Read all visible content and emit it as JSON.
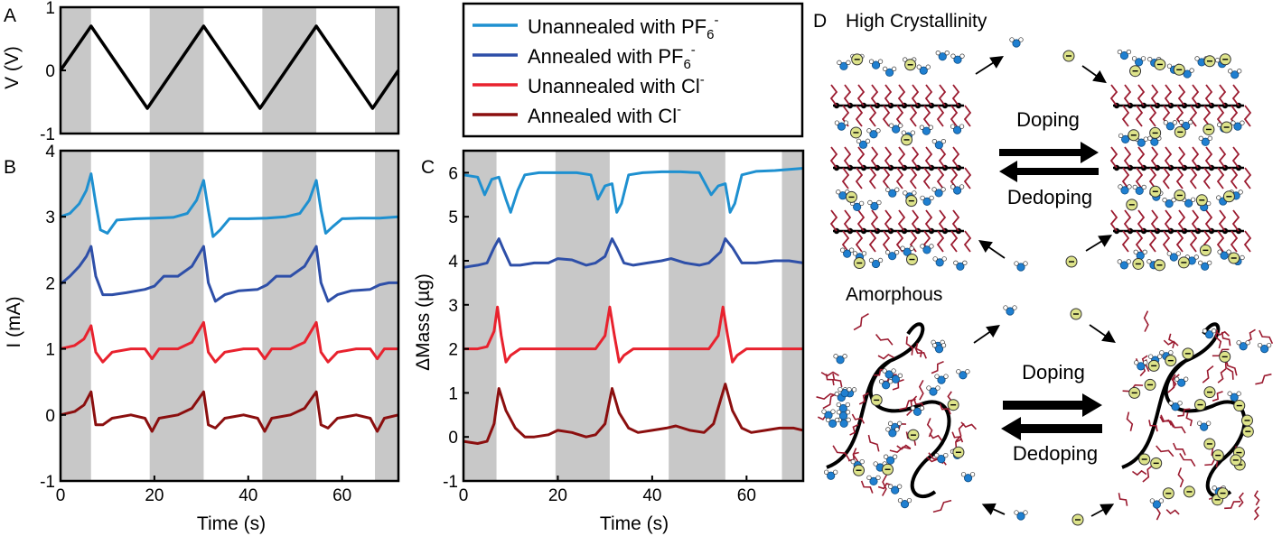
{
  "panel_labels": {
    "a": "A",
    "b": "B",
    "c": "C",
    "d": "D"
  },
  "panel_a": {
    "y_label": "V (V)",
    "y_ticks": [
      "1",
      "0",
      "-1"
    ]
  },
  "panel_b": {
    "y_label": "I (mA)",
    "x_label": "Time (s)",
    "y_ticks": [
      "4",
      "3",
      "2",
      "1",
      "0",
      "-1"
    ],
    "x_ticks": [
      "0",
      "20",
      "40",
      "60"
    ]
  },
  "panel_c": {
    "y_label": "ΔMass (µg)",
    "x_label": "Time (s)",
    "y_ticks": [
      "6",
      "5",
      "4",
      "3",
      "2",
      "1",
      "0",
      "-1"
    ],
    "x_ticks": [
      "0",
      "20",
      "40",
      "60"
    ]
  },
  "legend": [
    {
      "base": "Unannealed with PF",
      "sub": "6",
      "sup": "-",
      "color": "#1e90d0"
    },
    {
      "base": "Annealed with PF",
      "sub": "6",
      "sup": "-",
      "color": "#2e4fa8"
    },
    {
      "base": "Unannealed with Cl",
      "sub": "",
      "sup": "-",
      "color": "#e8222e"
    },
    {
      "base": "Annealed with Cl",
      "sub": "",
      "sup": "-",
      "color": "#8b0f0f"
    }
  ],
  "panel_d": {
    "title_top": "High Crystallinity",
    "title_bottom": "Amorphous",
    "doping_label": "Doping",
    "dedoping_label": "Dedoping",
    "polymer_color": "#9b1b30",
    "anion_color": "#dde38a",
    "water_color": "#1f7fd0"
  },
  "chart_data": [
    {
      "panel": "A",
      "type": "line",
      "xlabel": "",
      "ylabel": "V (V)",
      "xlim": [
        0,
        72
      ],
      "ylim": [
        -1,
        1
      ],
      "shaded_intervals": [
        [
          0,
          6.5
        ],
        [
          19,
          30.5
        ],
        [
          43,
          54.5
        ],
        [
          67,
          72
        ]
      ],
      "series": [
        {
          "color": "#000000",
          "x": [
            0,
            6.5,
            18.5,
            30.5,
            42.5,
            54.5,
            66.5,
            72
          ],
          "y": [
            0,
            0.7,
            -0.6,
            0.7,
            -0.6,
            0.7,
            -0.6,
            0
          ]
        }
      ]
    },
    {
      "panel": "B",
      "type": "line",
      "xlabel": "Time (s)",
      "ylabel": "I (mA)",
      "xlim": [
        0,
        72
      ],
      "ylim": [
        -1,
        4
      ],
      "shaded_intervals": [
        [
          0,
          6.5
        ],
        [
          19,
          30.5
        ],
        [
          43,
          54.5
        ],
        [
          67,
          72
        ]
      ],
      "series": [
        {
          "name": "Unannealed with PF6-",
          "color": "#1e90d0",
          "x": [
            0,
            2,
            4,
            5.5,
            6.5,
            7.5,
            8.5,
            10,
            12,
            16,
            20,
            24,
            27,
            29,
            30.5,
            31.5,
            32.5,
            34,
            36,
            40,
            44,
            48,
            51,
            53,
            54.5,
            55.5,
            56.5,
            58,
            60,
            64,
            68,
            72
          ],
          "y": [
            3.0,
            3.05,
            3.2,
            3.4,
            3.65,
            3.2,
            2.8,
            2.75,
            2.95,
            2.97,
            2.98,
            2.99,
            3.05,
            3.25,
            3.55,
            3.1,
            2.7,
            2.8,
            2.97,
            2.97,
            2.98,
            3.0,
            3.05,
            3.25,
            3.55,
            3.1,
            2.75,
            2.85,
            2.97,
            2.98,
            2.98,
            3.0
          ]
        },
        {
          "name": "Annealed with PF6-",
          "color": "#2e4fa8",
          "x": [
            0,
            2,
            4,
            5.5,
            6.5,
            7.5,
            9,
            11,
            14,
            18,
            20,
            22,
            25,
            28,
            30.5,
            31.5,
            33,
            35,
            38,
            42,
            44,
            46,
            49,
            52,
            54.5,
            55.5,
            57,
            59,
            62,
            66,
            68,
            70,
            72
          ],
          "y": [
            1.98,
            2.1,
            2.25,
            2.4,
            2.55,
            2.1,
            1.82,
            1.82,
            1.85,
            1.9,
            1.95,
            2.1,
            2.1,
            2.25,
            2.55,
            2.0,
            1.72,
            1.82,
            1.88,
            1.9,
            1.97,
            2.1,
            2.1,
            2.25,
            2.55,
            2.0,
            1.72,
            1.82,
            1.88,
            1.9,
            1.97,
            2.0,
            2.0
          ]
        },
        {
          "name": "Unannealed with Cl-",
          "color": "#e8222e",
          "x": [
            0,
            3,
            5,
            6.5,
            7.5,
            9,
            11,
            15,
            18,
            19.5,
            21,
            25,
            28,
            30.5,
            31.5,
            33,
            35,
            39,
            42,
            43.5,
            45,
            49,
            52,
            54.5,
            55.5,
            57,
            59,
            63,
            66,
            67.5,
            69,
            72
          ],
          "y": [
            1.0,
            1.05,
            1.15,
            1.35,
            0.95,
            0.8,
            0.95,
            1.0,
            1.0,
            0.85,
            1.0,
            1.0,
            1.1,
            1.4,
            0.95,
            0.8,
            0.95,
            1.0,
            1.0,
            0.85,
            1.0,
            1.0,
            1.1,
            1.4,
            0.95,
            0.8,
            0.95,
            1.0,
            1.0,
            0.85,
            1.0,
            1.0
          ]
        },
        {
          "name": "Annealed with Cl-",
          "color": "#8b0f0f",
          "x": [
            0,
            3,
            5,
            6.5,
            7.5,
            9,
            11,
            15,
            18,
            19.5,
            21,
            25,
            28,
            30.5,
            31.5,
            33,
            35,
            39,
            42,
            43.5,
            45,
            49,
            52,
            54.5,
            55.5,
            57,
            59,
            63,
            66,
            67.5,
            69,
            72
          ],
          "y": [
            0.0,
            0.05,
            0.15,
            0.35,
            -0.15,
            -0.15,
            -0.05,
            0.0,
            -0.05,
            -0.25,
            -0.05,
            0.0,
            0.1,
            0.35,
            -0.15,
            -0.2,
            -0.05,
            0.0,
            -0.05,
            -0.25,
            -0.05,
            0.0,
            0.1,
            0.35,
            -0.15,
            -0.2,
            -0.05,
            0.0,
            -0.05,
            -0.25,
            -0.05,
            0.0
          ]
        }
      ]
    },
    {
      "panel": "C",
      "type": "line",
      "xlabel": "Time (s)",
      "ylabel": "ΔMass (µg)",
      "xlim": [
        0,
        72
      ],
      "ylim": [
        -1,
        6.5
      ],
      "shaded_intervals": [
        [
          0,
          7
        ],
        [
          19.5,
          31
        ],
        [
          43.5,
          55.5
        ],
        [
          67.5,
          72
        ]
      ],
      "series": [
        {
          "name": "Unannealed with PF6-",
          "color": "#1e90d0",
          "x": [
            0,
            3,
            4.5,
            6,
            7.5,
            9,
            10,
            11.5,
            13,
            16,
            20,
            24,
            27,
            28.5,
            30,
            31.5,
            32.5,
            33.5,
            35,
            38,
            42,
            46,
            50,
            52.5,
            54,
            55.5,
            56.5,
            57.5,
            59,
            62,
            66,
            72
          ],
          "y": [
            5.95,
            5.9,
            5.5,
            5.85,
            5.9,
            5.4,
            5.1,
            5.6,
            5.95,
            6.0,
            6.0,
            6.0,
            5.95,
            5.4,
            5.7,
            5.75,
            5.1,
            5.3,
            5.95,
            6.0,
            6.02,
            6.02,
            6.0,
            5.5,
            5.7,
            5.75,
            5.1,
            5.3,
            5.95,
            6.03,
            6.05,
            6.1
          ]
        },
        {
          "name": "Annealed with PF6-",
          "color": "#2e4fa8",
          "x": [
            0,
            3,
            5,
            6.5,
            7.5,
            8.5,
            10,
            12,
            15,
            18,
            20,
            23,
            26,
            28,
            30,
            31.5,
            32.5,
            34,
            36,
            39,
            42,
            44,
            47,
            50,
            52,
            54.5,
            55.5,
            57,
            59,
            62,
            66,
            69,
            72
          ],
          "y": [
            3.85,
            3.9,
            3.95,
            4.3,
            4.5,
            4.25,
            3.9,
            3.9,
            3.95,
            3.95,
            4.05,
            4.02,
            3.9,
            3.95,
            4.1,
            4.5,
            4.3,
            3.95,
            3.9,
            3.95,
            4.0,
            4.05,
            3.95,
            3.9,
            3.95,
            4.2,
            4.5,
            4.3,
            3.95,
            3.95,
            4.0,
            4.0,
            3.95
          ]
        },
        {
          "name": "Unannealed with Cl-",
          "color": "#e8222e",
          "x": [
            0,
            3,
            5,
            6.5,
            7.2,
            8,
            9,
            10,
            12,
            16,
            20,
            24,
            28,
            30,
            31,
            32,
            33,
            34,
            36,
            40,
            44,
            48,
            52,
            54,
            55,
            56,
            57,
            58,
            60,
            64,
            68,
            72
          ],
          "y": [
            2.0,
            2.0,
            2.05,
            2.4,
            2.95,
            2.3,
            1.7,
            1.85,
            2.0,
            2.0,
            2.0,
            2.0,
            2.0,
            2.3,
            2.95,
            2.3,
            1.7,
            1.85,
            2.0,
            2.0,
            2.0,
            2.0,
            2.0,
            2.3,
            2.95,
            2.3,
            1.7,
            1.85,
            2.0,
            2.0,
            2.0,
            2.0
          ]
        },
        {
          "name": "Annealed with Cl-",
          "color": "#8b0f0f",
          "x": [
            0,
            3,
            5,
            6.5,
            7.5,
            9,
            11,
            13,
            15,
            18,
            20,
            23,
            26,
            28,
            30,
            31.5,
            33,
            35,
            37,
            40,
            43,
            45,
            48,
            51,
            53,
            55.5,
            57,
            59,
            61,
            64,
            67,
            70,
            72
          ],
          "y": [
            -0.1,
            -0.15,
            -0.1,
            0.3,
            1.1,
            0.6,
            0.2,
            0.0,
            0.0,
            0.05,
            0.15,
            0.1,
            0.0,
            0.05,
            0.3,
            1.1,
            0.55,
            0.2,
            0.1,
            0.15,
            0.2,
            0.25,
            0.15,
            0.1,
            0.3,
            1.2,
            0.6,
            0.2,
            0.1,
            0.15,
            0.2,
            0.2,
            0.15
          ]
        }
      ]
    }
  ]
}
